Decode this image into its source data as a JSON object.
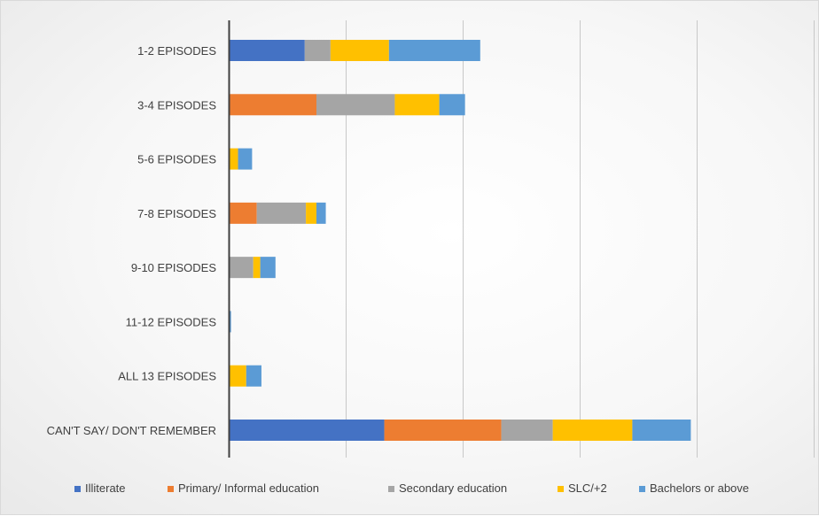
{
  "chart_data": {
    "type": "bar",
    "orientation": "horizontal",
    "stacked": true,
    "title": "",
    "xlabel": "",
    "ylabel": "",
    "xlim": [
      0,
      500
    ],
    "x_gridlines": [
      0,
      100,
      200,
      300,
      400,
      500
    ],
    "grid": true,
    "legend_position": "bottom",
    "categories": [
      "1-2 EPISODES",
      "3-4 EPISODES",
      "5-6 EPISODES",
      "7-8 EPISODES",
      "9-10 EPISODES",
      "11-12 EPISODES",
      "ALL 13 EPISODES",
      "CAN'T SAY/ DON'T REMEMBER"
    ],
    "series": [
      {
        "name": "Illiterate",
        "color": "#4472C4",
        "values": [
          65,
          0,
          0,
          0,
          0,
          0,
          0,
          133
        ]
      },
      {
        "name": "Primary/ Informal education",
        "color": "#ED7D31",
        "values": [
          0,
          75,
          0,
          24,
          0,
          0,
          0,
          100
        ]
      },
      {
        "name": "Secondary education",
        "color": "#A5A5A5",
        "values": [
          22,
          67,
          0,
          42,
          21,
          0,
          0,
          44
        ]
      },
      {
        "name": "SLC/+2",
        "color": "#FFC000",
        "values": [
          50,
          38,
          8,
          9,
          6,
          0,
          15,
          68
        ]
      },
      {
        "name": "Bachelors or above",
        "color": "#5B9BD5",
        "values": [
          78,
          22,
          12,
          8,
          13,
          2,
          13,
          50
        ]
      }
    ]
  }
}
